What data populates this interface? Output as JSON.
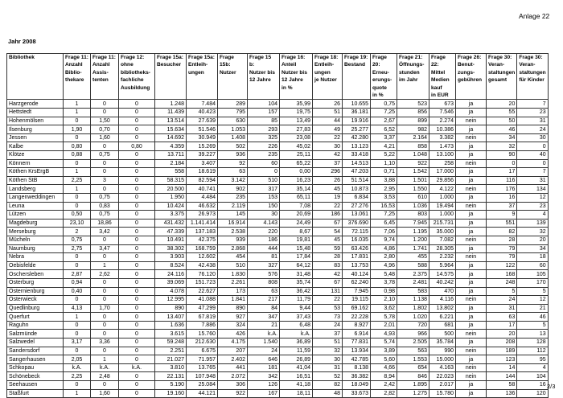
{
  "page": {
    "annex": "Anlage 22",
    "year_title": "Jahr 2008",
    "page_number": "2/3"
  },
  "table": {
    "headers": [
      [
        "Bibliothek"
      ],
      [
        "Frage 11:",
        "Anzahl",
        "Biblio-",
        "thekare"
      ],
      [
        "Frage 11:",
        "Anzahl",
        "Assis-",
        "tenten"
      ],
      [
        "Frage 12:",
        "ohne",
        "bibliotheks-",
        "fachliche",
        "Ausbildung"
      ],
      [
        "Frage 15a:",
        "Besucher"
      ],
      [
        "Frage 15a:",
        "Entleih-",
        "ungen"
      ],
      [
        "Frage 15b:",
        "Nutzer"
      ],
      [
        "Frage 15 b:",
        "Nutzer bis",
        "12 Jahre"
      ],
      [
        "Frage 16:",
        "Anteil",
        "Nutzer bis",
        "12 Jahre",
        "in %"
      ],
      [
        "Frage 18:",
        "Entleih-",
        "ungen",
        "je Nutzer"
      ],
      [
        "Frage 19:",
        "Bestand"
      ],
      [
        "Frage 20:",
        "Erneu-",
        "erungs-",
        "quote",
        "in %"
      ],
      [
        "Frage 21:",
        "Öffnungs-",
        "stunden",
        "im Jahr"
      ],
      [
        "Frage 22:",
        "Mittel",
        "Medien",
        "kauf",
        "in EUR"
      ],
      [
        "Frage 26:",
        "Benut-",
        "zungs-",
        "gebühren"
      ],
      [
        "Frage 30:",
        "Veran-",
        "staltungen",
        "gesamt"
      ],
      [
        "Frage 30:",
        "Veran-",
        "staltungen",
        "für Kinder"
      ]
    ],
    "rows": [
      [
        "Harzgerode",
        "1",
        "0",
        "0",
        "1.248",
        "7.484",
        "289",
        "104",
        "35,99",
        "26",
        "10.655",
        "0,75",
        "523",
        "673",
        "ja",
        "20",
        "7"
      ],
      [
        "Hettstedt",
        "1",
        "0",
        "0",
        "11.439",
        "40.423",
        "795",
        "157",
        "19,75",
        "51",
        "36.181",
        "7,25",
        "856",
        "7.546",
        "ja",
        "55",
        "23"
      ],
      [
        "Hohenmölsen",
        "0",
        "1,50",
        "0",
        "13.514",
        "27.639",
        "630",
        "85",
        "13,49",
        "44",
        "19.916",
        "2,67",
        "899",
        "2.274",
        "nein",
        "50",
        "31"
      ],
      [
        "Ilsenburg",
        "1,90",
        "0,70",
        "0",
        "15.634",
        "51.546",
        "1.053",
        "293",
        "27,83",
        "49",
        "25.277",
        "6,52",
        "982",
        "10.386",
        "ja",
        "46",
        "24"
      ],
      [
        "Jessen",
        "0",
        "1,60",
        "0",
        "14.692",
        "30.949",
        "1.408",
        "325",
        "23,08",
        "22",
        "42.280",
        "3,37",
        "2.164",
        "3.382",
        "nein",
        "34",
        "30"
      ],
      [
        "Kalbe",
        "0,80",
        "0",
        "0,80",
        "4.359",
        "15.269",
        "502",
        "226",
        "45,02",
        "30",
        "13.123",
        "4,21",
        "858",
        "1.473",
        "ja",
        "32",
        "0"
      ],
      [
        "Klötze",
        "0,88",
        "0,75",
        "0",
        "13.711",
        "39.227",
        "936",
        "235",
        "25,11",
        "42",
        "33.418",
        "5,22",
        "1.048",
        "13.100",
        "ja",
        "90",
        "40"
      ],
      [
        "Könnern",
        "0",
        "0",
        "0",
        "2.184",
        "3.407",
        "92",
        "60",
        "65,22",
        "37",
        "14.513",
        "1,10",
        "922",
        "258",
        "nein",
        "0",
        "0"
      ],
      [
        "Köthen KrsErgB",
        "1",
        "0",
        "0",
        "558",
        "18.619",
        "63",
        "0",
        "0,00",
        "296",
        "47.203",
        "0,71",
        "1.542",
        "17.000",
        "ja",
        "17",
        "7"
      ],
      [
        "Köthen StB",
        "2,25",
        "3",
        "0",
        "58.315",
        "82.594",
        "3.142",
        "510",
        "16,23",
        "26",
        "51.514",
        "3,88",
        "1.501",
        "29.856",
        "ja",
        "116",
        "31"
      ],
      [
        "Landsberg",
        "1",
        "0",
        "0",
        "20.500",
        "40.741",
        "902",
        "317",
        "35,14",
        "45",
        "10.873",
        "2,95",
        "1.550",
        "4.122",
        "nein",
        "176",
        "134"
      ],
      [
        "Langenweddingen",
        "0",
        "0,75",
        "0",
        "1.950",
        "4.484",
        "235",
        "153",
        "65,11",
        "19",
        "6.834",
        "3,53",
        "610",
        "1.000",
        "ja",
        "16",
        "12"
      ],
      [
        "Leuna",
        "0",
        "0,83",
        "0",
        "10.424",
        "46.632",
        "2.119",
        "150",
        "7,08",
        "22",
        "27.276",
        "16,53",
        "1.036",
        "19.494",
        "nein",
        "37",
        "23"
      ],
      [
        "Lützen",
        "0,50",
        "0,75",
        "0",
        "3.375",
        "26.973",
        "145",
        "30",
        "20,69",
        "186",
        "13.061",
        "7,25",
        "803",
        "1.000",
        "ja",
        "9",
        "4"
      ],
      [
        "Magdeburg",
        "23,10",
        "18,86",
        "0",
        "431.432",
        "1.141.414",
        "16.914",
        "4.143",
        "24,49",
        "67",
        "376.690",
        "6,45",
        "7.945",
        "215.731",
        "ja",
        "551",
        "139"
      ],
      [
        "Merseburg",
        "2",
        "3,42",
        "0",
        "47.339",
        "137.183",
        "2.538",
        "220",
        "8,67",
        "54",
        "72.115",
        "7,06",
        "1.195",
        "35.000",
        "ja",
        "82",
        "32"
      ],
      [
        "Mücheln",
        "0,75",
        "0",
        "0",
        "10.491",
        "42.375",
        "939",
        "186",
        "19,81",
        "45",
        "16.035",
        "9,74",
        "1.200",
        "7.082",
        "nein",
        "28",
        "20"
      ],
      [
        "Naumburg",
        "2,75",
        "3,47",
        "0",
        "38.302",
        "168.759",
        "2.868",
        "444",
        "15,48",
        "59",
        "63.426",
        "4,86",
        "1.741",
        "28.305",
        "ja",
        "79",
        "34"
      ],
      [
        "Nebra",
        "0",
        "0",
        "0",
        "3.903",
        "12.602",
        "454",
        "81",
        "17,84",
        "28",
        "17.831",
        "2,80",
        "455",
        "2.232",
        "nein",
        "79",
        "18"
      ],
      [
        "Oebisfelde",
        "0",
        "1",
        "0",
        "8.524",
        "42.438",
        "510",
        "327",
        "64,12",
        "83",
        "13.753",
        "4,96",
        "588",
        "5.964",
        "ja",
        "122",
        "60"
      ],
      [
        "Oschersleben",
        "2,87",
        "2,62",
        "0",
        "24.116",
        "76.120",
        "1.830",
        "576",
        "31,48",
        "42",
        "40.124",
        "5,48",
        "2.375",
        "14.575",
        "ja",
        "168",
        "105"
      ],
      [
        "Osterburg",
        "0,94",
        "0",
        "0",
        "39.069",
        "151.723",
        "2.261",
        "808",
        "35,74",
        "67",
        "62.240",
        "3,78",
        "2.481",
        "40.242",
        "ja",
        "248",
        "170"
      ],
      [
        "Osternienburg",
        "0,40",
        "0",
        "0",
        "4.078",
        "22.627",
        "173",
        "63",
        "36,42",
        "131",
        "7.945",
        "0,98",
        "583",
        "470",
        "ja",
        "5",
        "5"
      ],
      [
        "Osterwieck",
        "0",
        "0",
        "0",
        "12.995",
        "41.088",
        "1.841",
        "217",
        "11,79",
        "22",
        "19.115",
        "2,10",
        "1.138",
        "4.116",
        "nein",
        "24",
        "12"
      ],
      [
        "Quedlinburg",
        "4,13",
        "1,70",
        "0",
        "890",
        "47.299",
        "890",
        "84",
        "9,44",
        "53",
        "69.162",
        "3,62",
        "1.802",
        "13.802",
        "ja",
        "31",
        "21"
      ],
      [
        "Querfurt",
        "1",
        "0",
        "0",
        "13.407",
        "67.819",
        "927",
        "347",
        "37,43",
        "73",
        "22.228",
        "5,78",
        "1.020",
        "6.221",
        "ja",
        "63",
        "46"
      ],
      [
        "Raguhn",
        "0",
        "0",
        "0",
        "1.636",
        "7.886",
        "324",
        "21",
        "6,48",
        "24",
        "8.927",
        "2,01",
        "720",
        "681",
        "ja",
        "17",
        "5"
      ],
      [
        "Salzmünde",
        "0",
        "0",
        "0",
        "3.615",
        "15.760",
        "426",
        "k.A.",
        "k.A.",
        "37",
        "6.914",
        "4,93",
        "966",
        "500",
        "nein",
        "20",
        "13"
      ],
      [
        "Salzwedel",
        "3,17",
        "3,36",
        "0",
        "59.248",
        "212.630",
        "4.175",
        "1.540",
        "36,89",
        "51",
        "77.831",
        "5,74",
        "2.505",
        "35.784",
        "ja",
        "208",
        "128"
      ],
      [
        "Sandersdorf",
        "0",
        "0",
        "0",
        "2.251",
        "6.675",
        "207",
        "24",
        "11,59",
        "32",
        "13.934",
        "3,89",
        "563",
        "990",
        "nein",
        "189",
        "112"
      ],
      [
        "Sangerhausen",
        "2,05",
        "1",
        "0",
        "21.027",
        "71.957",
        "2.402",
        "646",
        "26,89",
        "30",
        "42.785",
        "5,60",
        "1.553",
        "15.000",
        "ja",
        "123",
        "95"
      ],
      [
        "Schkopau",
        "k.A.",
        "k.A.",
        "k.A.",
        "3.810",
        "13.765",
        "441",
        "181",
        "41,04",
        "31",
        "8.138",
        "4,66",
        "654",
        "4.163",
        "nein",
        "14",
        "4"
      ],
      [
        "Schönebeck",
        "2,25",
        "2,48",
        "0",
        "22.131",
        "107.948",
        "2.072",
        "342",
        "16,51",
        "52",
        "36.382",
        "8,94",
        "846",
        "22.023",
        "nein",
        "144",
        "104"
      ],
      [
        "Seehausen",
        "0",
        "0",
        "0",
        "5.190",
        "25.084",
        "306",
        "126",
        "41,18",
        "82",
        "18.049",
        "2,42",
        "1.895",
        "2.017",
        "ja",
        "58",
        "16"
      ],
      [
        "Staßfurt",
        "1",
        "1,60",
        "0",
        "19.160",
        "44.121",
        "922",
        "167",
        "18,11",
        "48",
        "33.673",
        "2,82",
        "1.275",
        "15.780",
        "ja",
        "136",
        "120"
      ]
    ]
  }
}
